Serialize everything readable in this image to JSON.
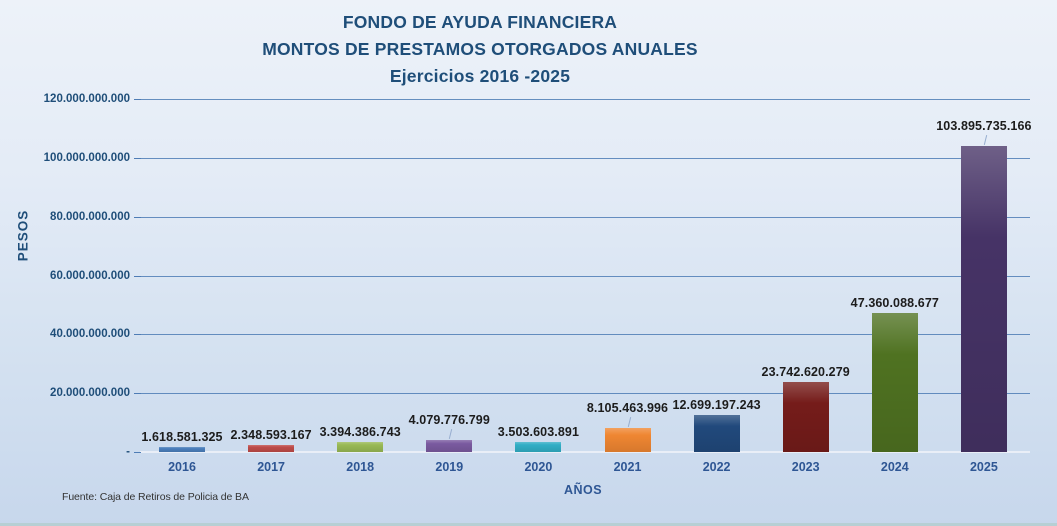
{
  "title": {
    "line1": "FONDO DE AYUDA FINANCIERA",
    "line2": "MONTOS DE PRESTAMOS OTORGADOS ANUALES",
    "line3": "Ejercicios 2016 -2025"
  },
  "y_axis": {
    "title": "PESOS",
    "tick_labels": [
      "120.000.000.000",
      "100.000.000.000",
      "80.000.000.000",
      "60.000.000.000",
      "40.000.000.000",
      "20.000.000.000",
      "-"
    ]
  },
  "x_axis": {
    "title": "AÑOS"
  },
  "source": "Fuente: Caja de Retiros de Policia de BA",
  "chart_data": {
    "type": "bar",
    "title": "FONDO DE AYUDA FINANCIERA — MONTOS DE PRESTAMOS OTORGADOS ANUALES — Ejercicios 2016 -2025",
    "xlabel": "AÑOS",
    "ylabel": "PESOS",
    "ylim": [
      0,
      120000000000
    ],
    "y_tick_step": 20000000000,
    "grid": "horizontal",
    "legend": "none",
    "categories": [
      "2016",
      "2017",
      "2018",
      "2019",
      "2020",
      "2021",
      "2022",
      "2023",
      "2024",
      "2025"
    ],
    "values": [
      1618581325,
      2348593167,
      3394386743,
      4079776799,
      3503603891,
      8105463996,
      12699197243,
      23742620279,
      47360088677,
      103895735166
    ],
    "value_labels": [
      "1.618.581.325",
      "2.348.593.167",
      "3.394.386.743",
      "4.079.776.799",
      "3.503.603.891",
      "8.105.463.996",
      "12.699.197.243",
      "23.742.620.279",
      "47.360.088.677",
      "103.895.735.166"
    ],
    "bar_colors": [
      "#4A7EBB",
      "#BE4B48",
      "#98B954",
      "#7A5AA0",
      "#31AEC5",
      "#EF8632",
      "#21497C",
      "#751C1A",
      "#4F7221",
      "#463366"
    ],
    "label_leader_line": [
      false,
      false,
      false,
      true,
      false,
      true,
      false,
      false,
      false,
      true
    ],
    "colors": {
      "title_text": "#1F4E79",
      "axis_text": "#2E5694",
      "gridline": "#4E7CB5",
      "data_label_text": "#1c1c1c",
      "background_top": "#EDF2F9",
      "background_bottom": "#C7D7EC"
    }
  }
}
